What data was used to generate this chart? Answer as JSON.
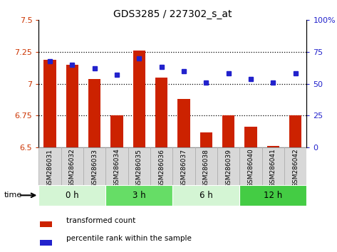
{
  "title": "GDS3285 / 227302_s_at",
  "samples": [
    "GSM286031",
    "GSM286032",
    "GSM286033",
    "GSM286034",
    "GSM286035",
    "GSM286036",
    "GSM286037",
    "GSM286038",
    "GSM286039",
    "GSM286040",
    "GSM286041",
    "GSM286042"
  ],
  "bar_values": [
    7.19,
    7.15,
    7.04,
    6.75,
    7.26,
    7.05,
    6.88,
    6.62,
    6.75,
    6.66,
    6.51,
    6.75
  ],
  "dot_values": [
    68,
    65,
    62,
    57,
    70,
    63,
    60,
    51,
    58,
    54,
    51,
    58
  ],
  "bar_color": "#cc2200",
  "dot_color": "#2222cc",
  "ylim_left": [
    6.5,
    7.5
  ],
  "ylim_right": [
    0,
    100
  ],
  "yticks_left": [
    6.5,
    6.75,
    7.0,
    7.25,
    7.5
  ],
  "yticks_right": [
    0,
    25,
    50,
    75,
    100
  ],
  "ytick_labels_left": [
    "6.5",
    "6.75",
    "7",
    "7.25",
    "7.5"
  ],
  "ytick_labels_right": [
    "0",
    "25",
    "50",
    "75",
    "100%"
  ],
  "hlines": [
    6.75,
    7.0,
    7.25
  ],
  "time_groups": [
    {
      "label": "0 h",
      "start": 0,
      "end": 3,
      "color": "#d4f5d4"
    },
    {
      "label": "3 h",
      "start": 3,
      "end": 6,
      "color": "#66dd66"
    },
    {
      "label": "6 h",
      "start": 6,
      "end": 9,
      "color": "#d4f5d4"
    },
    {
      "label": "12 h",
      "start": 9,
      "end": 12,
      "color": "#44cc44"
    }
  ],
  "time_label": "time",
  "legend_bar_label": "transformed count",
  "legend_dot_label": "percentile rank within the sample",
  "bar_width": 0.55,
  "baseline": 6.5,
  "bg_color": "#ffffff",
  "plot_bg_color": "#ffffff",
  "tick_color_left": "#cc3300",
  "tick_color_right": "#2222cc",
  "label_box_color": "#d8d8d8",
  "label_box_edge": "#aaaaaa"
}
